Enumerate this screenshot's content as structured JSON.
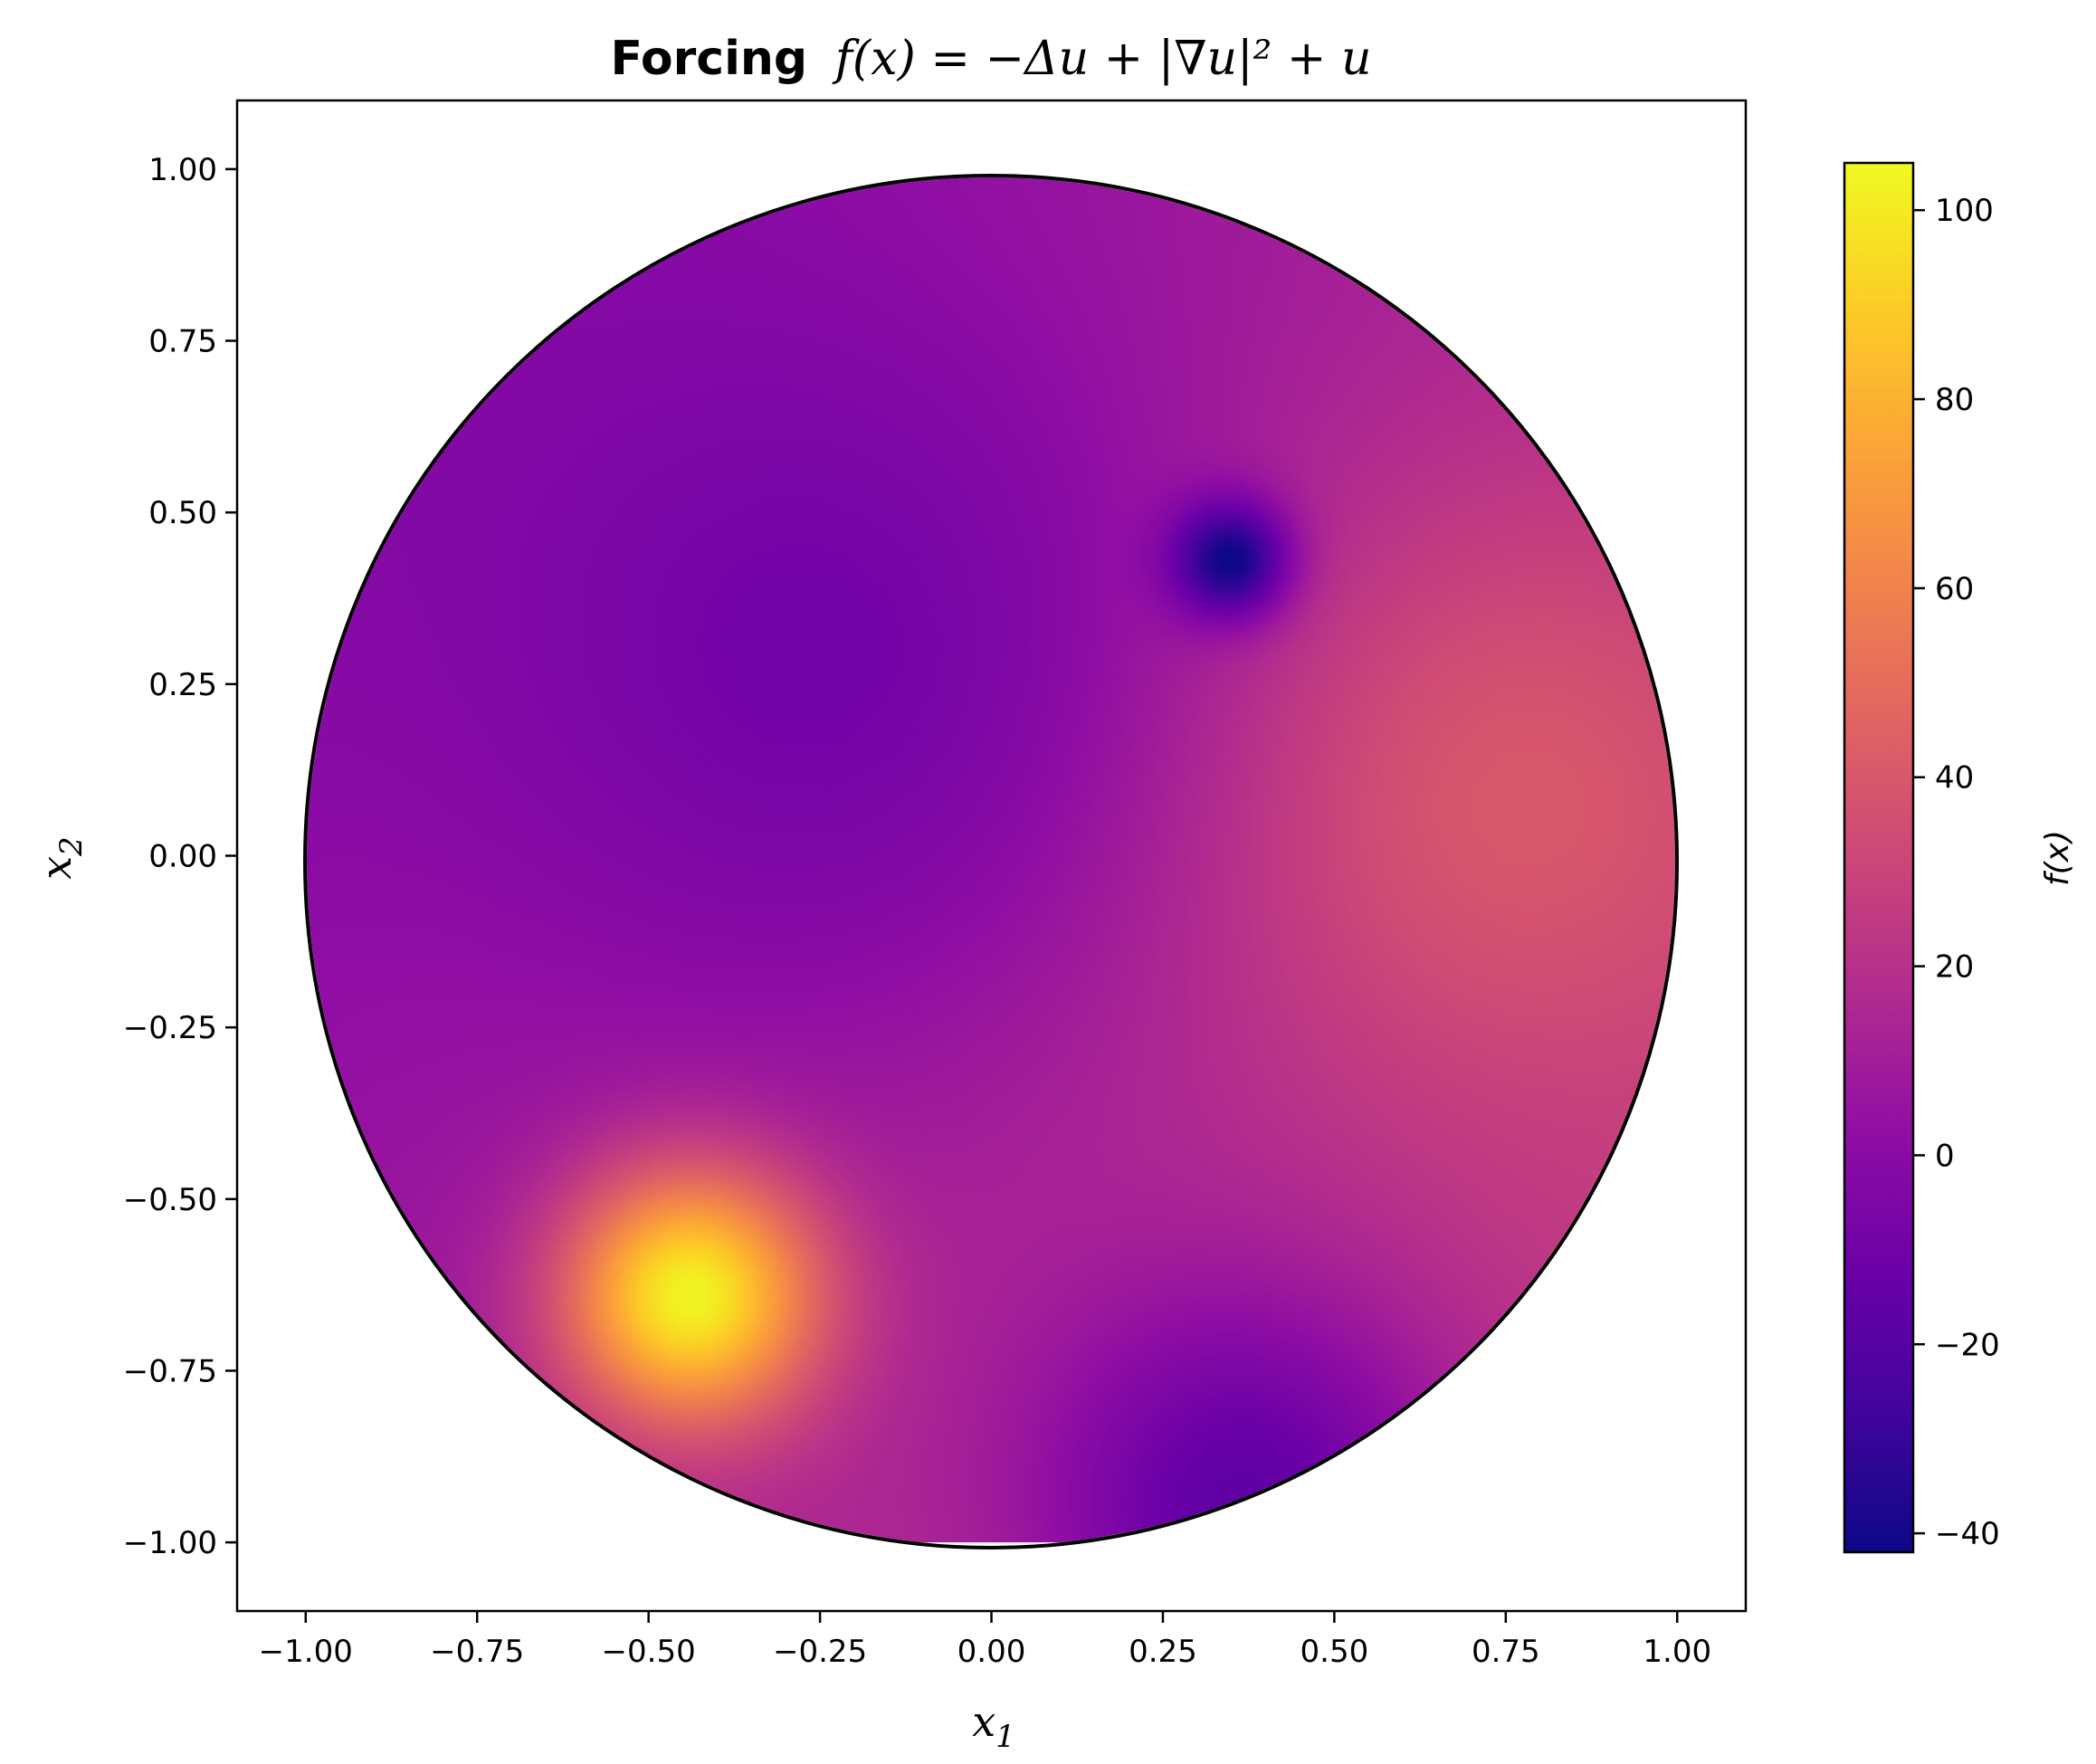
{
  "chart_data": {
    "type": "heatmap",
    "title": {
      "bold": "Forcing",
      "formula": "f(x) = −Δu + |∇u|² + u"
    },
    "xlabel": {
      "base": "x",
      "sub": "1"
    },
    "ylabel": {
      "base": "x",
      "sub": "2"
    },
    "xlim": [
      -1.1,
      1.1
    ],
    "ylim": [
      -1.1,
      1.1
    ],
    "xticks": [
      -1.0,
      -0.75,
      -0.5,
      -0.25,
      0.0,
      0.25,
      0.5,
      0.75,
      1.0
    ],
    "yticks": [
      -1.0,
      -0.75,
      -0.5,
      -0.25,
      0.0,
      0.25,
      0.5,
      0.75,
      1.0
    ],
    "xtick_labels": [
      "−1.00",
      "−0.75",
      "−0.50",
      "−0.25",
      "0.00",
      "0.25",
      "0.50",
      "0.75",
      "1.00"
    ],
    "ytick_labels": [
      "−1.00",
      "−0.75",
      "−0.50",
      "−0.25",
      "0.00",
      "0.25",
      "0.50",
      "0.75",
      "1.00"
    ],
    "domain": {
      "shape": "disk",
      "center": [
        0,
        0
      ],
      "radius": 1.0
    },
    "colormap": "plasma",
    "colorbar": {
      "label": "f(x)",
      "vmin": -42,
      "vmax": 105,
      "ticks": [
        -40,
        -20,
        0,
        20,
        40,
        60,
        80,
        100
      ],
      "tick_labels": [
        "−40",
        "−20",
        "0",
        "20",
        "40",
        "60",
        "80",
        "100"
      ]
    },
    "features": [
      {
        "kind": "maximum",
        "x": -0.44,
        "y": -0.64,
        "value": 105
      },
      {
        "kind": "minimum",
        "x": 0.35,
        "y": 0.43,
        "value": -42
      },
      {
        "kind": "plateau",
        "x": 0.72,
        "y": 0.1,
        "value": 42
      },
      {
        "kind": "trough",
        "x": -0.18,
        "y": 0.25,
        "value": -10
      },
      {
        "kind": "trough",
        "x": 0.38,
        "y": -0.95,
        "value": -30
      }
    ]
  }
}
